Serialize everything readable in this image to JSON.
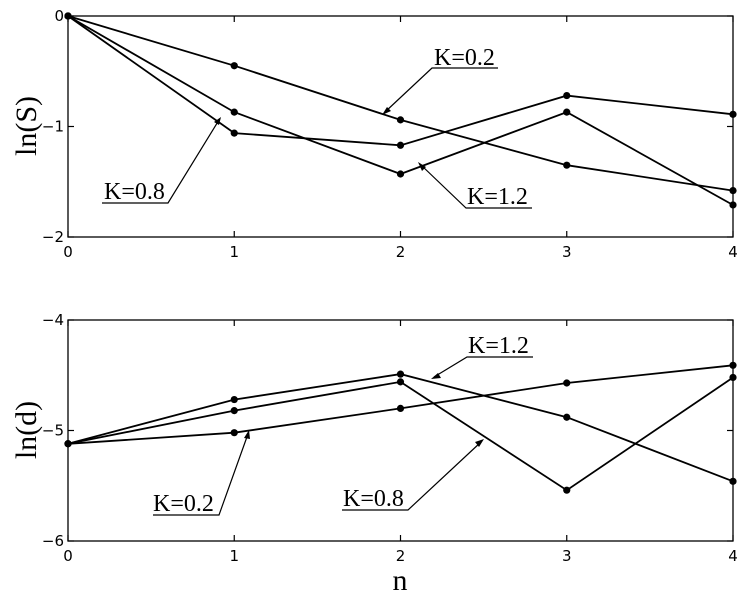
{
  "chart_data": [
    {
      "type": "line",
      "xlabel": "",
      "ylabel": "ln(S)",
      "xlim": [
        0,
        4
      ],
      "ylim": [
        -2,
        0
      ],
      "xticks": [
        0,
        1,
        2,
        3,
        4
      ],
      "yticks": [
        0,
        -1,
        -2
      ],
      "grid": false,
      "series": [
        {
          "name": "K=0.2",
          "x": [
            0,
            1,
            2,
            3,
            4
          ],
          "values": [
            0,
            -0.45,
            -0.94,
            -1.35,
            -1.58
          ]
        },
        {
          "name": "K=0.8",
          "x": [
            0,
            1,
            2,
            3,
            4
          ],
          "values": [
            0,
            -1.06,
            -1.17,
            -0.72,
            -0.89
          ]
        },
        {
          "name": "K=1.2",
          "x": [
            0,
            1,
            2,
            3,
            4
          ],
          "values": [
            0,
            -0.87,
            -1.43,
            -0.87,
            -1.71
          ]
        }
      ]
    },
    {
      "type": "line",
      "xlabel": "n",
      "ylabel": "ln(d)",
      "xlim": [
        0,
        4
      ],
      "ylim": [
        -6,
        -4
      ],
      "xticks": [
        0,
        1,
        2,
        3,
        4
      ],
      "yticks": [
        -4,
        -5,
        -6
      ],
      "grid": false,
      "series": [
        {
          "name": "K=0.2",
          "x": [
            0,
            1,
            2,
            3,
            4
          ],
          "values": [
            -5.12,
            -5.02,
            -4.8,
            -4.57,
            -4.41
          ]
        },
        {
          "name": "K=0.8",
          "x": [
            0,
            1,
            2,
            3,
            4
          ],
          "values": [
            -5.12,
            -4.82,
            -4.56,
            -5.54,
            -4.52
          ]
        },
        {
          "name": "K=1.2",
          "x": [
            0,
            1,
            2,
            3,
            4
          ],
          "values": [
            -5.12,
            -4.72,
            -4.49,
            -4.88,
            -5.46
          ]
        }
      ]
    }
  ]
}
